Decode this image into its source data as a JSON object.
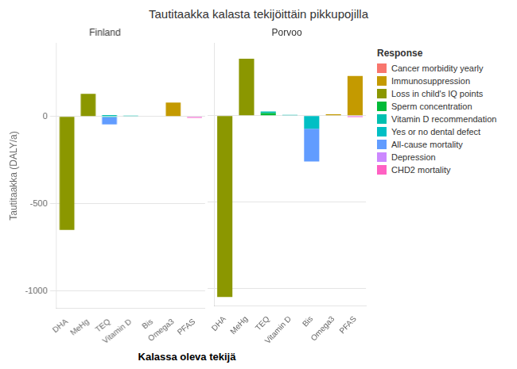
{
  "title": "Tautitaakka kalasta tekijöittäin pikkupojilla",
  "xlabel": "Kalassa oleva tekijä",
  "legend": "right",
  "legend_title": "Response",
  "chart_data": [
    {
      "type": "bar",
      "title": "Finland",
      "ylabel": "Tautitaakka (DALY/a)",
      "stacked": true,
      "grid": true,
      "categories": [
        "DHA",
        "MeHg",
        "TEQ",
        "Vitamin D",
        "Bis",
        "Omega3",
        "PFAS"
      ],
      "ylim": [
        -1100,
        420
      ],
      "yticks": [
        -1000,
        -500,
        0
      ],
      "series": [
        {
          "name": "Cancer morbidity yearly",
          "color": "#F8766D",
          "values": [
            null,
            null,
            null,
            null,
            null,
            null,
            null
          ]
        },
        {
          "name": "Immunosuppression",
          "color": "#C49A00",
          "values": [
            null,
            null,
            null,
            null,
            null,
            80,
            null
          ]
        },
        {
          "name": "Loss in child's IQ points",
          "color": "#8B9700",
          "values": [
            -650,
            130,
            null,
            null,
            null,
            null,
            null
          ]
        },
        {
          "name": "Sperm concentration",
          "color": "#00BA38",
          "values": [
            null,
            null,
            null,
            null,
            null,
            null,
            null
          ]
        },
        {
          "name": "Vitamin D recommendation",
          "color": "#00C0B0",
          "values": [
            null,
            null,
            8,
            5,
            null,
            null,
            null
          ]
        },
        {
          "name": "Yes or no dental defect",
          "color": "#00BFC4",
          "values": [
            null,
            null,
            -5,
            null,
            null,
            null,
            null
          ]
        },
        {
          "name": "All-cause mortality",
          "color": "#619CFF",
          "values": [
            null,
            null,
            -40,
            null,
            null,
            null,
            null
          ]
        },
        {
          "name": "Depression",
          "color": "#CC88FF",
          "values": [
            null,
            null,
            null,
            null,
            null,
            null,
            -4
          ]
        },
        {
          "name": "CHD2 mortality",
          "color": "#FF61C3",
          "values": [
            null,
            null,
            null,
            null,
            null,
            null,
            -4
          ]
        }
      ]
    },
    {
      "type": "bar",
      "title": "Porvoo",
      "stacked": true,
      "grid": true,
      "tick_labels": "x",
      "categories": [
        "DHA",
        "MeHg",
        "TEQ",
        "Vitamin D",
        "Bis",
        "Omega3",
        "PFAS"
      ],
      "ylim": [
        -1100,
        420
      ],
      "yticks": [
        -1000,
        -500,
        0
      ],
      "series": [
        {
          "name": "Cancer morbidity yearly",
          "color": "#F8766D",
          "values": [
            null,
            null,
            null,
            null,
            null,
            null,
            null
          ]
        },
        {
          "name": "Immunosuppression",
          "color": "#C49A00",
          "values": [
            null,
            null,
            null,
            null,
            null,
            8,
            230
          ]
        },
        {
          "name": "Loss in child's IQ points",
          "color": "#8B9700",
          "values": [
            -1050,
            330,
            null,
            null,
            null,
            null,
            null
          ]
        },
        {
          "name": "Sperm concentration",
          "color": "#00BA38",
          "values": [
            null,
            null,
            15,
            null,
            null,
            null,
            null
          ]
        },
        {
          "name": "Vitamin D recommendation",
          "color": "#00C0B0",
          "values": [
            null,
            null,
            10,
            5,
            null,
            null,
            null
          ]
        },
        {
          "name": "Yes or no dental defect",
          "color": "#00BFC4",
          "values": [
            null,
            null,
            null,
            null,
            -75,
            null,
            null
          ]
        },
        {
          "name": "All-cause mortality",
          "color": "#619CFF",
          "values": [
            null,
            null,
            null,
            null,
            -190,
            null,
            null
          ]
        },
        {
          "name": "Depression",
          "color": "#CC88FF",
          "values": [
            null,
            null,
            null,
            null,
            null,
            null,
            -4
          ]
        },
        {
          "name": "CHD2 mortality",
          "color": "#FF61C3",
          "values": [
            null,
            null,
            null,
            null,
            null,
            null,
            -4
          ]
        }
      ]
    }
  ]
}
